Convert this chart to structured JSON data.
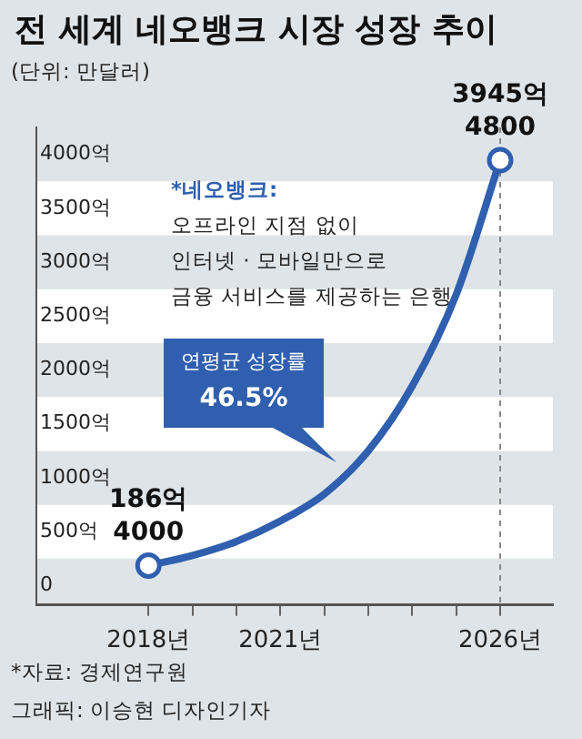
{
  "chart_data": {
    "type": "line",
    "title": "전 세계 네오뱅크 시장 성장 추이",
    "subtitle": "(단위: 만달러)",
    "x": [
      2018,
      2019,
      2020,
      2021,
      2022,
      2023,
      2024,
      2025,
      2026
    ],
    "series": [
      {
        "color": "#2f5fae",
        "values": [
          186.4,
          280,
          410,
          600,
          850,
          1250,
          1850,
          2700,
          3945.48
        ],
        "value_labels": [
          "186억\n4000",
          null,
          null,
          null,
          null,
          null,
          null,
          null,
          "3945억\n4800"
        ]
      }
    ],
    "xlim": [
      2015.45,
      2027.2
    ],
    "xticks": [
      {
        "value": 2018,
        "label": "2018년"
      },
      {
        "value": 2019,
        "label": null
      },
      {
        "value": 2020,
        "label": null
      },
      {
        "value": 2021,
        "label": "2021년"
      },
      {
        "value": 2022,
        "label": null
      },
      {
        "value": 2023,
        "label": null
      },
      {
        "value": 2024,
        "label": null
      },
      {
        "value": 2025,
        "label": null
      },
      {
        "value": 2026,
        "label": "2026년"
      }
    ],
    "ylim": [
      -180,
      4250
    ],
    "yticks": [
      0,
      {
        "value": 500,
        "label": "500억"
      },
      {
        "value": 1000,
        "label": "1000억"
      },
      {
        "value": 1500,
        "label": "1500억"
      },
      {
        "value": 2000,
        "label": "2000억"
      },
      {
        "value": 2500,
        "label": "2500억"
      },
      {
        "value": 3000,
        "label": "3000억"
      },
      {
        "value": 3500,
        "label": "3500억"
      },
      {
        "value": 4000,
        "label": "4000억"
      }
    ],
    "bands": [
      {
        "axis": "y",
        "from": 250,
        "to": 750,
        "color": "#ffffff"
      },
      {
        "axis": "y",
        "from": 1250,
        "to": 1750,
        "color": "#ffffff"
      },
      {
        "axis": "y",
        "from": 2250,
        "to": 2750,
        "color": "#ffffff"
      },
      {
        "axis": "y",
        "from": 3250,
        "to": 3750,
        "color": "#ffffff"
      }
    ],
    "ref_lines": [
      {
        "axis": "x",
        "value": 2026,
        "color": "#888888",
        "line_style": "dashed"
      }
    ],
    "line_style": "solid",
    "legend": false,
    "annotations": [
      "*네오뱅크:\n오프라인 지점 없이\n인터넷 · 모바일만으로\n금융 서비스를 제공하는 은행",
      "연평균 성장률\n46.5%",
      "*자료: 경제연구원",
      "그래픽: 이승현 디자인기자"
    ]
  }
}
